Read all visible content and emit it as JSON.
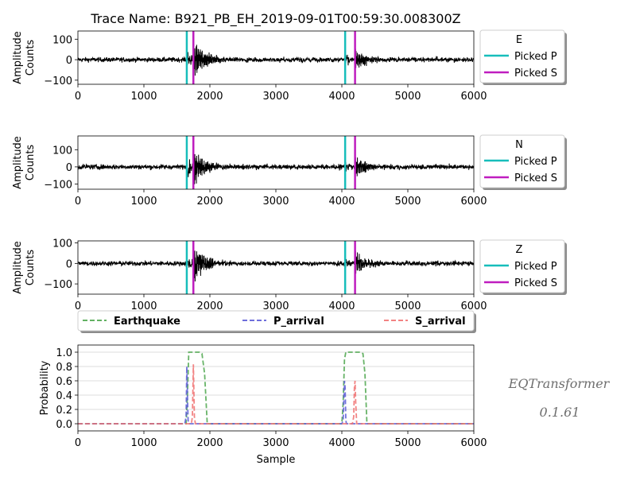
{
  "chart_data": [
    {
      "type": "line",
      "component": "E",
      "title": "Trace Name: B921_PB_EH_2019-09-01T00:59:30.008300Z",
      "ylabel": [
        "Amplitude",
        "Counts"
      ],
      "xlim": [
        0,
        6000
      ],
      "ylim": [
        -120,
        140
      ],
      "xticks": [
        "0",
        "1000",
        "2000",
        "3000",
        "4000",
        "5000",
        "6000"
      ],
      "yticks": [
        "100",
        "0",
        "−100"
      ],
      "ytick_values": [
        100,
        0,
        -100
      ],
      "legend": {
        "title": "E",
        "entries": [
          "Picked P",
          "Picked S"
        ]
      },
      "picks": {
        "P": [
          1650,
          4050
        ],
        "S": [
          1750,
          4200
        ]
      },
      "events": [
        {
          "p": 1650,
          "s": 1750,
          "amp": 100
        },
        {
          "p": 4050,
          "s": 4200,
          "amp": 60
        }
      ],
      "noise": 8
    },
    {
      "type": "line",
      "component": "N",
      "ylabel": [
        "Amplitude",
        "Counts"
      ],
      "xlim": [
        0,
        6000
      ],
      "ylim": [
        -130,
        180
      ],
      "xticks": [
        "0",
        "1000",
        "2000",
        "3000",
        "4000",
        "5000",
        "6000"
      ],
      "yticks": [
        "100",
        "0",
        "−100"
      ],
      "ytick_values": [
        100,
        0,
        -100
      ],
      "legend": {
        "title": "N",
        "entries": [
          "Picked P",
          "Picked S"
        ]
      },
      "picks": {
        "P": [
          1650,
          4050
        ],
        "S": [
          1750,
          4200
        ]
      },
      "events": [
        {
          "p": 1650,
          "s": 1750,
          "amp": 135
        },
        {
          "p": 4050,
          "s": 4200,
          "amp": 80
        }
      ],
      "noise": 10
    },
    {
      "type": "line",
      "component": "Z",
      "ylabel": [
        "Amplitude",
        "Counts"
      ],
      "xlim": [
        0,
        6000
      ],
      "ylim": [
        -150,
        110
      ],
      "xticks": [
        "0",
        "1000",
        "2000",
        "3000",
        "4000",
        "5000",
        "6000"
      ],
      "yticks": [
        "100",
        "0",
        "−100"
      ],
      "ytick_values": [
        100,
        0,
        -100
      ],
      "legend": {
        "title": "Z",
        "entries": [
          "Picked P",
          "Picked S"
        ]
      },
      "picks": {
        "P": [
          1650,
          4050
        ],
        "S": [
          1750,
          4200
        ]
      },
      "events": [
        {
          "p": 1650,
          "s": 1750,
          "amp": 100
        },
        {
          "p": 4050,
          "s": 4200,
          "amp": 60
        }
      ],
      "noise": 8
    },
    {
      "type": "line",
      "ylabel": "Probability",
      "xlabel": "Sample",
      "xlim": [
        0,
        6000
      ],
      "ylim": [
        -0.1,
        1.1
      ],
      "grid": "horizontal",
      "xticks": [
        "0",
        "1000",
        "2000",
        "3000",
        "4000",
        "5000",
        "6000"
      ],
      "yticks": [
        "0.0",
        "0.2",
        "0.4",
        "0.6",
        "0.8",
        "1.0"
      ],
      "ytick_values": [
        0,
        0.2,
        0.4,
        0.6,
        0.8,
        1.0
      ],
      "legend": {
        "placement": "top",
        "entries": [
          "Earthquake",
          "P_arrival",
          "S_arrival"
        ]
      },
      "series": [
        {
          "name": "Earthquake",
          "color": "#4ca64c",
          "x": [
            0,
            1640,
            1660,
            1680,
            1840,
            1880,
            1920,
            1960,
            4000,
            4020,
            4040,
            4060,
            4280,
            4320,
            4350,
            4380,
            6000
          ],
          "y": [
            0,
            0,
            0.4,
            1.0,
            1.0,
            0.98,
            0.7,
            0,
            0,
            0.3,
            0.9,
            1.0,
            1.0,
            0.98,
            0.7,
            0,
            0
          ]
        },
        {
          "name": "P_arrival",
          "color": "#5a5ad6",
          "x": [
            0,
            1620,
            1640,
            1650,
            1660,
            1670,
            1680,
            4000,
            4020,
            4040,
            4050,
            4060,
            4070,
            6000
          ],
          "y": [
            0,
            0,
            0.1,
            0.8,
            0.4,
            0.05,
            0,
            0,
            0.05,
            0.6,
            0.5,
            0.05,
            0,
            0
          ]
        },
        {
          "name": "S_arrival",
          "color": "#f07070",
          "x": [
            0,
            1720,
            1735,
            1750,
            1765,
            1780,
            4160,
            4180,
            4190,
            4200,
            4210,
            4225,
            6000
          ],
          "y": [
            0,
            0,
            0.1,
            0.83,
            0.1,
            0,
            0,
            0.1,
            0.5,
            0.6,
            0.3,
            0,
            0
          ]
        }
      ]
    }
  ],
  "brand": {
    "name": "EQTransformer",
    "version": "0.1.61"
  },
  "colors": {
    "pick_p": "#17bebb",
    "pick_s": "#bf1dbf",
    "trace": "#000000"
  }
}
